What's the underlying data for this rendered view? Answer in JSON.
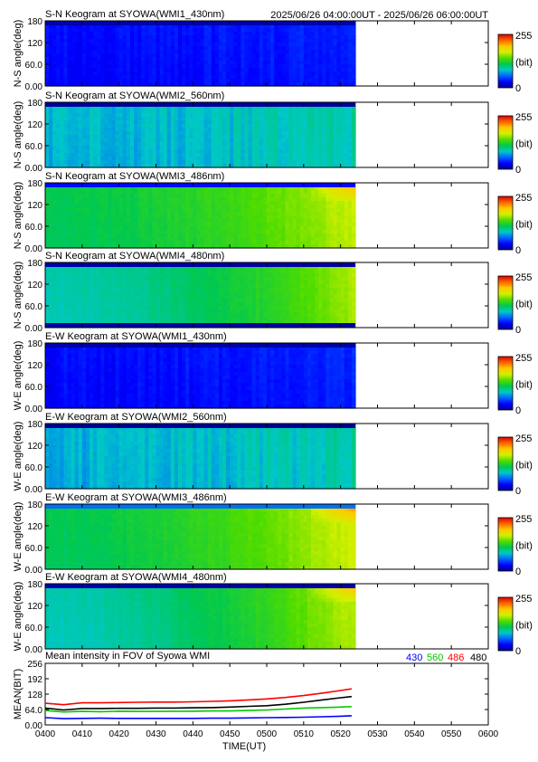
{
  "header": {
    "time_range": "2025/06/26 04:00:00UT - 2025/06/26 06:00:00UT"
  },
  "colorbar": {
    "max_label": "255",
    "unit_label": "(bit)",
    "min_label": "0"
  },
  "colors": {
    "scale": [
      "#00008c",
      "#0000ff",
      "#0064ff",
      "#00c8c8",
      "#00c850",
      "#50dc00",
      "#d2f000",
      "#ffc800",
      "#ff6400",
      "#dc0000"
    ],
    "no_data": "#ffffff",
    "series_430": "#0000ff",
    "series_560": "#00c800",
    "series_486": "#ff0000",
    "series_480": "#000000"
  },
  "chart_data": [
    {
      "type": "heatmap",
      "title": "S-N Keogram at SYOWA(WMI1_430nm)",
      "ylabel": "N-S angle(deg)",
      "ytick_labels": [
        "180",
        "120",
        "60.0",
        "0.00"
      ],
      "ylim": [
        0,
        180
      ],
      "xlim_minutes": [
        0,
        120
      ],
      "data_end_minutes": 84,
      "intensity_start": 30,
      "intensity_end": 38,
      "edge_band": "top",
      "edge_value": 8,
      "flare_value": null,
      "stripe_strength": 10,
      "colorbar_range": [
        0,
        255
      ]
    },
    {
      "type": "heatmap",
      "title": "S-N Keogram at SYOWA(WMI2_560nm)",
      "ylabel": "N-S angle(deg)",
      "ytick_labels": [
        "180",
        "120",
        "60.0",
        "0.00"
      ],
      "ylim": [
        0,
        180
      ],
      "xlim_minutes": [
        0,
        120
      ],
      "data_end_minutes": 84,
      "intensity_start": 78,
      "intensity_end": 92,
      "edge_band": "top",
      "edge_value": 4,
      "flare_value": null,
      "stripe_strength": 18,
      "colorbar_range": [
        0,
        255
      ]
    },
    {
      "type": "heatmap",
      "title": "S-N Keogram at SYOWA(WMI3_486nm)",
      "ylabel": "N-S angle(deg)",
      "ytick_labels": [
        "180",
        "120",
        "60.0",
        "0.00"
      ],
      "ylim": [
        0,
        180
      ],
      "xlim_minutes": [
        0,
        120
      ],
      "data_end_minutes": 84,
      "intensity_start": 112,
      "intensity_end": 168,
      "edge_band": "top",
      "edge_value": 30,
      "flare_value": 205,
      "stripe_strength": 6,
      "colorbar_range": [
        0,
        255
      ]
    },
    {
      "type": "heatmap",
      "title": "S-N Keogram at SYOWA(WMI4_480nm)",
      "ylabel": "N-S angle(deg)",
      "ytick_labels": [
        "180",
        "120",
        "60.0",
        "0.00"
      ],
      "ylim": [
        0,
        180
      ],
      "xlim_minutes": [
        0,
        120
      ],
      "data_end_minutes": 84,
      "intensity_start": 90,
      "intensity_end": 160,
      "edge_band": "both",
      "edge_value": 6,
      "flare_value": null,
      "stripe_strength": 6,
      "colorbar_range": [
        0,
        255
      ]
    },
    {
      "type": "heatmap",
      "title": "E-W Keogram at SYOWA(WMI1_430nm)",
      "ylabel": "W-E angle(deg)",
      "ytick_labels": [
        "180",
        "120",
        "60.0",
        "0.00"
      ],
      "ylim": [
        0,
        180
      ],
      "xlim_minutes": [
        0,
        120
      ],
      "data_end_minutes": 84,
      "intensity_start": 30,
      "intensity_end": 38,
      "edge_band": "top",
      "edge_value": 8,
      "flare_value": null,
      "stripe_strength": 10,
      "colorbar_range": [
        0,
        255
      ]
    },
    {
      "type": "heatmap",
      "title": "E-W Keogram at SYOWA(WMI2_560nm)",
      "ylabel": "W-E angle(deg)",
      "ytick_labels": [
        "180",
        "120",
        "60.0",
        "0.00"
      ],
      "ylim": [
        0,
        180
      ],
      "xlim_minutes": [
        0,
        120
      ],
      "data_end_minutes": 84,
      "intensity_start": 78,
      "intensity_end": 92,
      "edge_band": "top",
      "edge_value": 4,
      "flare_value": null,
      "stripe_strength": 18,
      "colorbar_range": [
        0,
        255
      ]
    },
    {
      "type": "heatmap",
      "title": "E-W Keogram at SYOWA(WMI3_486nm)",
      "ylabel": "W-E angle(deg)",
      "ytick_labels": [
        "180",
        "120",
        "60.0",
        "0.00"
      ],
      "ylim": [
        0,
        180
      ],
      "xlim_minutes": [
        0,
        120
      ],
      "data_end_minutes": 84,
      "intensity_start": 112,
      "intensity_end": 172,
      "edge_band": "top",
      "edge_value": 60,
      "flare_value": 215,
      "stripe_strength": 6,
      "colorbar_range": [
        0,
        255
      ]
    },
    {
      "type": "heatmap",
      "title": "E-W Keogram at SYOWA(WMI4_480nm)",
      "ylabel": "W-E angle(deg)",
      "ytick_labels": [
        "180",
        "120",
        "60.0",
        "0.00"
      ],
      "ylim": [
        0,
        180
      ],
      "xlim_minutes": [
        0,
        120
      ],
      "data_end_minutes": 84,
      "intensity_start": 90,
      "intensity_end": 165,
      "edge_band": "top",
      "edge_value": 10,
      "flare_value": 200,
      "stripe_strength": 6,
      "colorbar_range": [
        0,
        255
      ]
    },
    {
      "type": "line",
      "title": "Mean intensity in FOV of Syowa WMI",
      "xlabel": "TIME(UT)",
      "ylabel": "MEAN(BIT)",
      "ylim": [
        0,
        256
      ],
      "xlim_minutes": [
        0,
        120
      ],
      "ytick_labels": [
        "256",
        "192",
        "128",
        "64.0",
        "0.00"
      ],
      "xtick_labels": [
        "0400",
        "0410",
        "0420",
        "0430",
        "0440",
        "0450",
        "0500",
        "0510",
        "0520",
        "0530",
        "0540",
        "0550",
        "0600"
      ],
      "x": [
        0,
        5,
        10,
        15,
        20,
        25,
        30,
        35,
        40,
        45,
        50,
        55,
        60,
        65,
        70,
        75,
        80,
        83
      ],
      "series": [
        {
          "name": "430",
          "values": [
            30,
            26,
            27,
            28,
            27,
            27,
            27,
            27,
            27,
            28,
            28,
            29,
            30,
            31,
            32,
            34,
            36,
            38
          ]
        },
        {
          "name": "560",
          "values": [
            60,
            54,
            56,
            55,
            57,
            56,
            56,
            57,
            57,
            58,
            58,
            60,
            62,
            66,
            70,
            72,
            74,
            76
          ]
        },
        {
          "name": "486",
          "values": [
            90,
            84,
            92,
            92,
            93,
            94,
            95,
            95,
            96,
            98,
            100,
            104,
            108,
            114,
            122,
            132,
            143,
            150
          ]
        },
        {
          "name": "480",
          "values": [
            70,
            62,
            68,
            68,
            69,
            69,
            70,
            70,
            71,
            72,
            74,
            77,
            80,
            86,
            94,
            104,
            113,
            118
          ]
        }
      ]
    }
  ]
}
